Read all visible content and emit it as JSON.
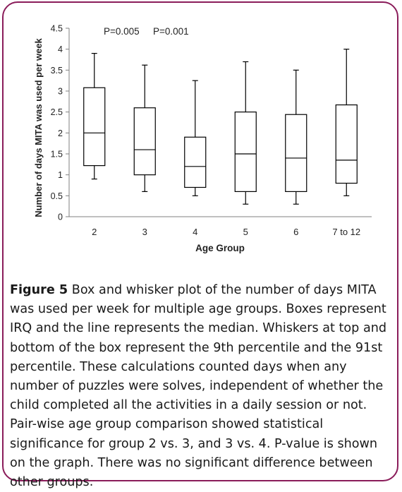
{
  "chart_data": {
    "type": "box",
    "xlabel": "Age Group",
    "ylabel": "Number of days MITA was used per week",
    "ylim": [
      0,
      4.5
    ],
    "yticks": [
      "0",
      "0.5",
      "1",
      "1.5",
      "2",
      "2.5",
      "3",
      "3.5",
      "4",
      "4.5"
    ],
    "categories": [
      "2",
      "3",
      "4",
      "5",
      "6",
      "7 to 12"
    ],
    "boxes": [
      {
        "category": "2",
        "whisker_low": 0.9,
        "q1": 1.22,
        "median": 2.0,
        "q3": 3.08,
        "whisker_high": 3.9
      },
      {
        "category": "3",
        "whisker_low": 0.6,
        "q1": 1.0,
        "median": 1.6,
        "q3": 2.6,
        "whisker_high": 3.62
      },
      {
        "category": "4",
        "whisker_low": 0.5,
        "q1": 0.7,
        "median": 1.2,
        "q3": 1.9,
        "whisker_high": 3.25
      },
      {
        "category": "5",
        "whisker_low": 0.3,
        "q1": 0.6,
        "median": 1.5,
        "q3": 2.5,
        "whisker_high": 3.7
      },
      {
        "category": "6",
        "whisker_low": 0.3,
        "q1": 0.6,
        "median": 1.4,
        "q3": 2.44,
        "whisker_high": 3.5
      },
      {
        "category": "7 to 12",
        "whisker_low": 0.5,
        "q1": 0.8,
        "median": 1.35,
        "q3": 2.67,
        "whisker_high": 4.0
      }
    ],
    "annotations": [
      "P=0.005",
      "P=0.001"
    ],
    "grid": false
  },
  "caption": {
    "label": "Figure 5",
    "text": " Box and whisker plot of the number of days MITA was used per week for multiple age groups. Boxes represent IRQ and the line represents the median. Whiskers at top and bottom of the box represent the 9th percentile and the 91st percentile. These calculations counted days when any number of puzzles were solves, independent of whether the child completed all the activities in a daily session or not. Pair-wise age group comparison showed statistical significance for group 2 vs. 3, and 3 vs. 4. P-value is shown on the graph. There was no significant difference between other groups."
  }
}
